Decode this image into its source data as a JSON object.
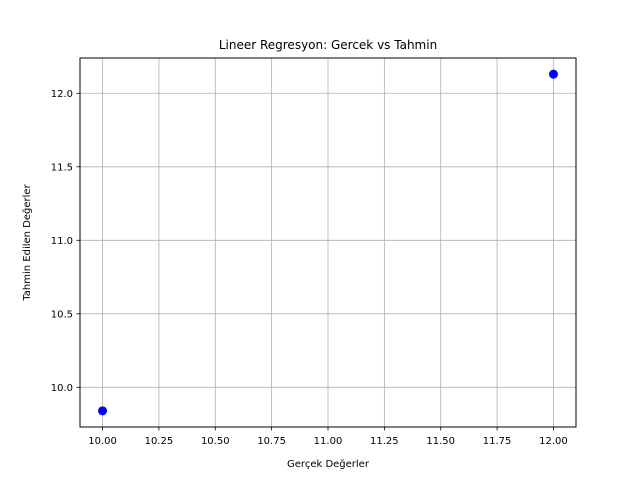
{
  "chart_data": {
    "type": "scatter",
    "title": "Lineer Regresyon: Gercek vs Tahmin",
    "xlabel": "Gerçek Değerler",
    "ylabel": "Tahmin Edilen Değerler",
    "xlim": [
      9.9,
      12.1
    ],
    "ylim": [
      9.73,
      12.24
    ],
    "xticks": [
      10.0,
      10.25,
      10.5,
      10.75,
      11.0,
      11.25,
      11.5,
      11.75,
      12.0
    ],
    "xtick_labels": [
      "10.00",
      "10.25",
      "10.50",
      "10.75",
      "11.00",
      "11.25",
      "11.50",
      "11.75",
      "12.00"
    ],
    "yticks": [
      10.0,
      10.5,
      11.0,
      11.5,
      12.0
    ],
    "ytick_labels": [
      "10.0",
      "10.5",
      "11.0",
      "11.5",
      "12.0"
    ],
    "grid": true,
    "marker_color": "#0000ff",
    "points": [
      {
        "x": 10.0,
        "y": 9.84
      },
      {
        "x": 12.0,
        "y": 12.13
      }
    ]
  }
}
